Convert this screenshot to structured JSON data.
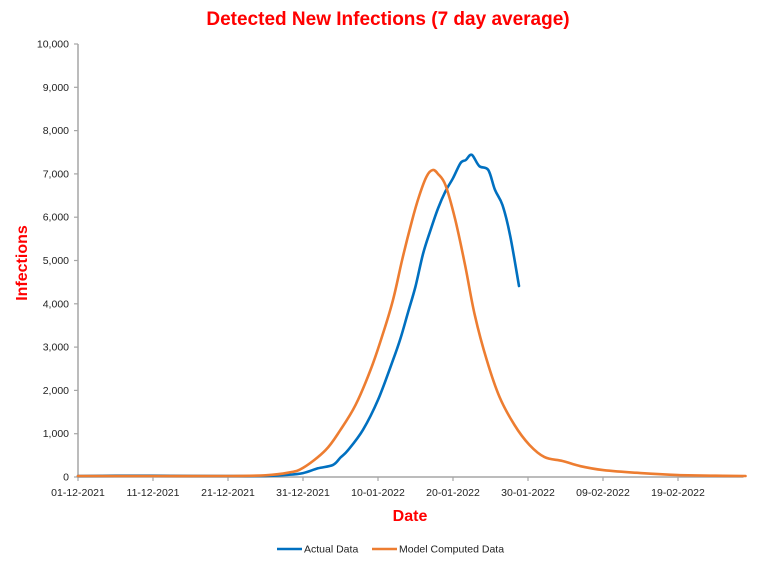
{
  "chart_data": {
    "type": "line",
    "title": "Detected New Infections (7 day average)",
    "xlabel": "Date",
    "ylabel": "Infections",
    "ylim": [
      0,
      10000
    ],
    "y_ticks": [
      0,
      1000,
      2000,
      3000,
      4000,
      5000,
      6000,
      7000,
      8000,
      9000,
      10000
    ],
    "y_tick_labels": [
      "0",
      "1,000",
      "2,000",
      "3,000",
      "4,000",
      "5,000",
      "6,000",
      "7,000",
      "8,000",
      "9,000",
      "10,000"
    ],
    "x_start_date": "01-12-2021",
    "x_unit": "days since 01-12-2021",
    "xlim": [
      0,
      89
    ],
    "x_ticks": [
      0,
      10,
      20,
      30,
      40,
      50,
      60,
      70,
      80
    ],
    "x_tick_labels": [
      "01-12-2021",
      "11-12-2021",
      "21-12-2021",
      "31-12-2021",
      "10-01-2022",
      "20-01-2022",
      "30-01-2022",
      "09-02-2022",
      "19-02-2022"
    ],
    "grid": false,
    "legend_position": "bottom",
    "series": [
      {
        "name": "Actual Data",
        "color": "#0070C0",
        "x": [
          0,
          5,
          10,
          15,
          20,
          25,
          28,
          30,
          32,
          34,
          35,
          36,
          38,
          40,
          42,
          43,
          44,
          45,
          46,
          47,
          48,
          49,
          50,
          51,
          51.7,
          52.5,
          53.5,
          54.7,
          55.6,
          56.6,
          57.6,
          58.8
        ],
        "y": [
          20,
          30,
          30,
          25,
          20,
          25,
          50,
          90,
          200,
          280,
          450,
          620,
          1090,
          1780,
          2700,
          3200,
          3800,
          4400,
          5150,
          5700,
          6200,
          6600,
          6900,
          7250,
          7320,
          7440,
          7180,
          7090,
          6630,
          6280,
          5590,
          4410
        ]
      },
      {
        "name": "Model Computed Data",
        "color": "#ED7D31",
        "x": [
          0,
          10,
          20,
          25,
          28,
          30,
          33,
          35,
          37,
          39,
          40.6,
          42,
          43.2,
          44.5,
          45.5,
          46.5,
          47.3,
          48,
          49,
          50.3,
          51.6,
          52.9,
          54.5,
          56.2,
          58.2,
          60.2,
          62.2,
          64.6,
          67,
          70,
          75,
          80,
          85,
          89
        ],
        "y": [
          20,
          15,
          20,
          40,
          100,
          210,
          620,
          1090,
          1660,
          2470,
          3280,
          4090,
          5000,
          5900,
          6500,
          6950,
          7090,
          7000,
          6740,
          5940,
          4900,
          3740,
          2700,
          1850,
          1200,
          740,
          460,
          370,
          250,
          160,
          90,
          45,
          30,
          20
        ]
      }
    ]
  }
}
